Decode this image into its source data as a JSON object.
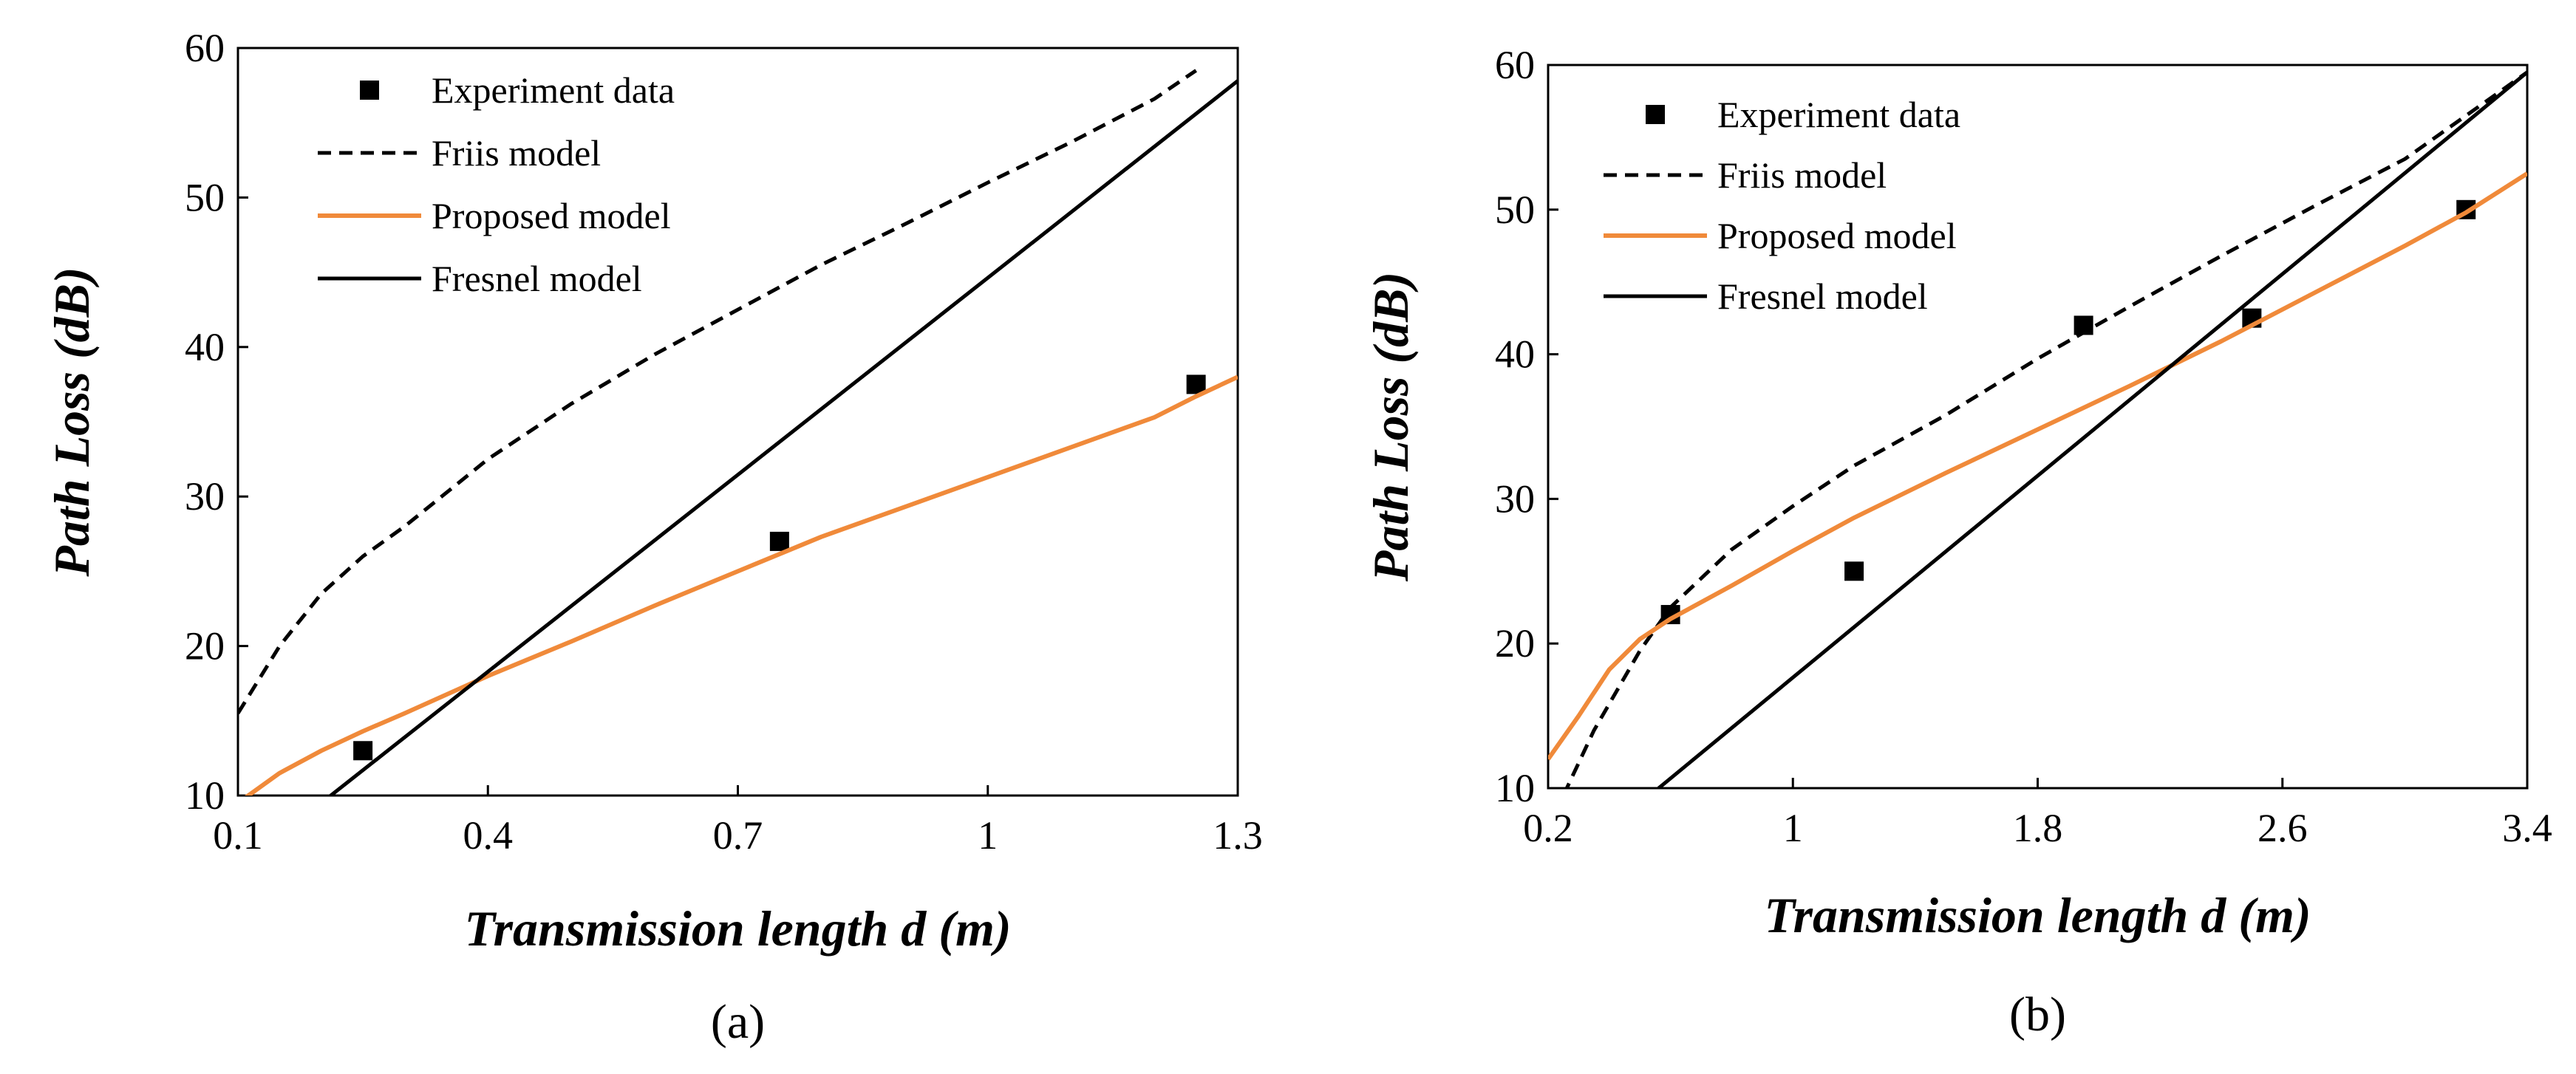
{
  "colors": {
    "experiment": "#000000",
    "friis": "#000000",
    "proposed": "#F08A3A",
    "fresnel": "#000000"
  },
  "chart_data": [
    {
      "type": "line",
      "panel_label": "(a)",
      "xlabel": "Transmission length d (m)",
      "ylabel": "Path Loss (dB)",
      "xlim": [
        0.1,
        1.3
      ],
      "ylim": [
        10,
        60
      ],
      "xticks": [
        "0.1",
        "0.4",
        "0.7",
        "1",
        "1.3"
      ],
      "yticks": [
        "10",
        "20",
        "30",
        "40",
        "50",
        "60"
      ],
      "legend_position": "top-left",
      "grid": false,
      "series": [
        {
          "name": "Experiment data",
          "kind": "scatter",
          "x": [
            0.25,
            0.75,
            1.25
          ],
          "y": [
            13,
            27,
            37.5
          ]
        },
        {
          "name": "Friis model",
          "kind": "dashed",
          "x": [
            0.1,
            0.15,
            0.2,
            0.25,
            0.3,
            0.4,
            0.5,
            0.6,
            0.7,
            0.8,
            0.9,
            1.0,
            1.1,
            1.2,
            1.25
          ],
          "y": [
            15.5,
            20,
            23.5,
            26,
            28,
            32.5,
            36.2,
            39.5,
            42.5,
            45.5,
            48.2,
            51,
            53.7,
            56.6,
            58.5
          ]
        },
        {
          "name": "Proposed model",
          "kind": "solid",
          "x": [
            0.1,
            0.15,
            0.2,
            0.25,
            0.3,
            0.4,
            0.5,
            0.6,
            0.7,
            0.8,
            0.9,
            1.0,
            1.1,
            1.2,
            1.25,
            1.3
          ],
          "y": [
            9.5,
            11.5,
            13,
            14.3,
            15.5,
            18,
            20.3,
            22.7,
            25,
            27.3,
            29.3,
            31.3,
            33.3,
            35.3,
            36.7,
            38
          ]
        },
        {
          "name": "Fresnel model",
          "kind": "solid",
          "x": [
            0.2,
            1.3
          ],
          "y": [
            9.5,
            57.8
          ]
        }
      ]
    },
    {
      "type": "line",
      "panel_label": "(b)",
      "xlabel": "Transmission length d (m)",
      "ylabel": "Path Loss (dB)",
      "xlim": [
        0.2,
        3.4
      ],
      "ylim": [
        10,
        60
      ],
      "xticks": [
        "0.2",
        "1",
        "1.8",
        "2.6",
        "3.4"
      ],
      "yticks": [
        "10",
        "20",
        "30",
        "40",
        "50",
        "60"
      ],
      "legend_position": "top-left",
      "grid": false,
      "series": [
        {
          "name": "Experiment data",
          "kind": "scatter",
          "x": [
            0.6,
            1.2,
            1.95,
            2.5,
            3.2
          ],
          "y": [
            22,
            25,
            42,
            42.5,
            50
          ]
        },
        {
          "name": "Friis model",
          "kind": "dashed",
          "x": [
            0.25,
            0.35,
            0.5,
            0.6,
            0.8,
            1.0,
            1.2,
            1.5,
            1.8,
            2.1,
            2.4,
            2.7,
            3.0,
            3.2,
            3.4
          ],
          "y": [
            9.5,
            14,
            19.5,
            22.5,
            26.5,
            29.5,
            32.3,
            35.8,
            39.7,
            43.3,
            46.8,
            50.2,
            53.5,
            56.5,
            59.5
          ]
        },
        {
          "name": "Proposed model",
          "kind": "solid",
          "x": [
            0.2,
            0.3,
            0.4,
            0.5,
            0.6,
            0.8,
            1.0,
            1.2,
            1.5,
            1.8,
            2.1,
            2.4,
            2.7,
            3.0,
            3.2,
            3.4
          ],
          "y": [
            12,
            15,
            18.2,
            20.3,
            21.7,
            24,
            26.4,
            28.7,
            31.8,
            34.8,
            37.8,
            40.9,
            44.2,
            47.5,
            49.8,
            52.5
          ]
        },
        {
          "name": "Fresnel model",
          "kind": "solid",
          "x": [
            0.55,
            3.4
          ],
          "y": [
            9.8,
            59.5
          ]
        }
      ]
    }
  ]
}
